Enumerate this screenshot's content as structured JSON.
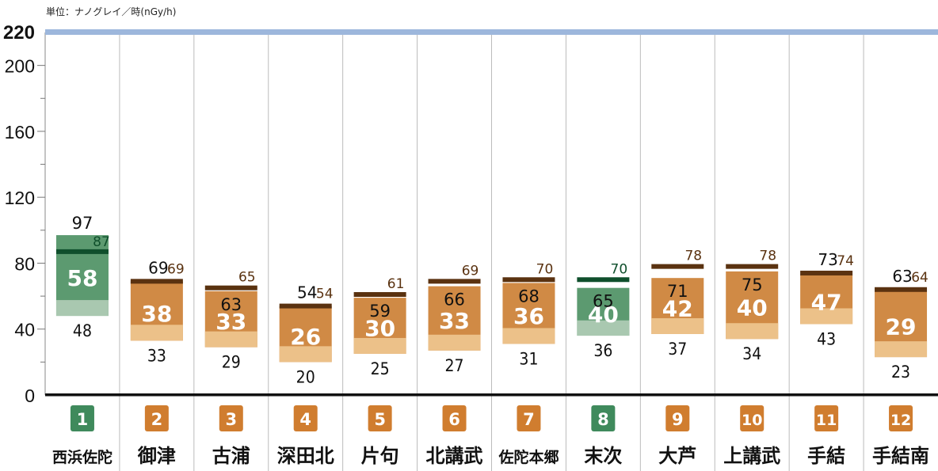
{
  "unit_label": "単位：ナノグレイ／時(nGy/h)",
  "colors": {
    "green_dark": "#0f4f2c",
    "green_box": "#5c9a70",
    "green_light": "#a9c8b0",
    "green_badge": "#3f8a5c",
    "orange_box": "#d08a45",
    "orange_light": "#ecc189",
    "orange_badge": "#d07d2f",
    "brown_bar": "#5a3210",
    "grid_line": "#bbbbbb",
    "top_line": "#9db7dc"
  },
  "chart_data": {
    "type": "range-bar",
    "y_ticks": [
      "0",
      "40",
      "80",
      "120",
      "160",
      "200",
      "220"
    ],
    "ylim": [
      0,
      220
    ],
    "grid": true,
    "categories": [
      {
        "num": "1",
        "name": "西浜佐陀",
        "max": 97,
        "min": 48,
        "avg": 58,
        "current": 87,
        "max_label": "97",
        "min_label": "48",
        "avg_label": "58",
        "current_label": "87",
        "color": "green"
      },
      {
        "num": "2",
        "name": "御津",
        "max": 69,
        "min": 33,
        "avg": 38,
        "current": 69,
        "max_label": "69",
        "min_label": "33",
        "avg_label": "38",
        "current_label": "69",
        "color": "orange"
      },
      {
        "num": "3",
        "name": "古浦",
        "max": 63,
        "min": 29,
        "avg": 33,
        "current": 65,
        "max_label": "63",
        "min_label": "29",
        "avg_label": "33",
        "current_label": "65",
        "color": "orange"
      },
      {
        "num": "4",
        "name": "深田北",
        "max": 54,
        "min": 20,
        "avg": 26,
        "current": 54,
        "max_label": "54",
        "min_label": "20",
        "avg_label": "26",
        "current_label": "54",
        "color": "orange"
      },
      {
        "num": "5",
        "name": "片句",
        "max": 59,
        "min": 25,
        "avg": 30,
        "current": 61,
        "max_label": "59",
        "min_label": "25",
        "avg_label": "30",
        "current_label": "61",
        "color": "orange"
      },
      {
        "num": "6",
        "name": "北講武",
        "max": 66,
        "min": 27,
        "avg": 33,
        "current": 69,
        "max_label": "66",
        "min_label": "27",
        "avg_label": "33",
        "current_label": "69",
        "color": "orange"
      },
      {
        "num": "7",
        "name": "佐陀本郷",
        "max": 68,
        "min": 31,
        "avg": 36,
        "current": 70,
        "max_label": "68",
        "min_label": "31",
        "avg_label": "36",
        "current_label": "70",
        "color": "orange"
      },
      {
        "num": "8",
        "name": "末次",
        "max": 65,
        "min": 36,
        "avg": 40,
        "current": 70,
        "max_label": "65",
        "min_label": "36",
        "avg_label": "40",
        "current_label": "70",
        "color": "green"
      },
      {
        "num": "9",
        "name": "大芦",
        "max": 71,
        "min": 37,
        "avg": 42,
        "current": 78,
        "max_label": "71",
        "min_label": "37",
        "avg_label": "42",
        "current_label": "78",
        "color": "orange"
      },
      {
        "num": "10",
        "name": "上講武",
        "max": 75,
        "min": 34,
        "avg": 40,
        "current": 78,
        "max_label": "75",
        "min_label": "34",
        "avg_label": "40",
        "current_label": "78",
        "color": "orange"
      },
      {
        "num": "11",
        "name": "手結",
        "max": 73,
        "min": 43,
        "avg": 47,
        "current": 74,
        "max_label": "73",
        "min_label": "43",
        "avg_label": "47",
        "current_label": "74",
        "color": "orange"
      },
      {
        "num": "12",
        "name": "手結南",
        "max": 63,
        "min": 23,
        "avg": 29,
        "current": 64,
        "max_label": "63",
        "min_label": "23",
        "avg_label": "29",
        "current_label": "64",
        "color": "orange"
      }
    ]
  }
}
